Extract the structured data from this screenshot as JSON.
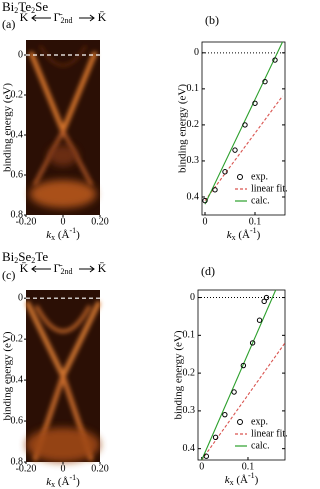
{
  "figures": [
    {
      "compound": [
        "Bi",
        "2",
        "Te",
        "2",
        "Se"
      ],
      "header": {
        "left": "K̄",
        "center": "Γ̄",
        "center_sub": "2nd",
        "right": "K̄"
      },
      "image": {
        "label": "(a)",
        "xlim": [
          -0.2,
          0.2
        ],
        "ylim": [
          -0.075,
          0.8
        ],
        "xticks": [
          {
            "value": -0.2,
            "label": "-0.20"
          },
          0,
          {
            "value": 0.2,
            "label": "0.20"
          }
        ],
        "yticks": [
          0,
          0.2,
          0.4,
          0.6,
          0.8
        ],
        "y_label": "binding energy (eV)",
        "x_label": [
          "k",
          "x",
          " (Å",
          "-1",
          ")"
        ]
      },
      "plot": {
        "label": "(b)",
        "type": "line",
        "xlim": [
          -0.006,
          0.16
        ],
        "ylim": [
          -0.03,
          0.45
        ],
        "xticks": [
          0,
          0.1
        ],
        "yticks": [
          0,
          0.1,
          0.2,
          0.3,
          0.4
        ],
        "y_label": "binding energy (eV)",
        "x_label": [
          "k",
          "x",
          " (Å",
          "-1",
          ")"
        ],
        "series": [
          {
            "name": "exp.",
            "color": "#000000",
            "style": "markers",
            "x": [
              0,
              0.02,
              0.04,
              0.06,
              0.08,
              0.1,
              0.12,
              0.14
            ],
            "values": [
              0.41,
              0.38,
              0.33,
              0.27,
              0.2,
              0.14,
              0.08,
              0.02
            ]
          },
          {
            "name": "linear fit.",
            "color": "#d9534f",
            "style": "dashed",
            "x": [
              0,
              0.155
            ],
            "values": [
              0.41,
              0.12
            ]
          },
          {
            "name": "calc.",
            "color": "#2ca02c",
            "style": "solid",
            "x": [
              0,
              0.155
            ],
            "values": [
              0.42,
              -0.03
            ]
          }
        ]
      }
    },
    {
      "compound": [
        "Bi",
        "2",
        "Se",
        "2",
        "Te"
      ],
      "header": {
        "left": "K̄",
        "center": "Γ̄",
        "center_sub": "2nd",
        "right": "K̄"
      },
      "image": {
        "label": "(c)",
        "xlim": [
          -0.2,
          0.2
        ],
        "ylim": [
          -0.04,
          0.8
        ],
        "xticks": [
          {
            "value": -0.2,
            "label": "-0.20"
          },
          0,
          {
            "value": 0.2,
            "label": "0.20"
          }
        ],
        "yticks": [
          0,
          0.2,
          0.4,
          0.6,
          0.8
        ],
        "y_label": "binding energy (eV)",
        "x_label": [
          "k",
          "x",
          " (Å",
          "-1",
          ")"
        ]
      },
      "plot": {
        "label": "(d)",
        "type": "line",
        "xlim": [
          -0.008,
          0.18
        ],
        "ylim": [
          -0.02,
          0.43
        ],
        "xticks": [
          0,
          0.1
        ],
        "yticks": [
          0,
          0.1,
          0.2,
          0.3,
          0.4
        ],
        "y_label": "binding energy (eV)",
        "x_label": [
          "k",
          "x",
          " (Å",
          "-1",
          ")"
        ],
        "series": [
          {
            "name": "exp.",
            "color": "#000000",
            "style": "markers",
            "x": [
              0.01,
              0.03,
              0.05,
              0.07,
              0.09,
              0.11,
              0.125,
              0.135,
              0.14
            ],
            "values": [
              0.42,
              0.37,
              0.31,
              0.25,
              0.18,
              0.12,
              0.06,
              0.01,
              0
            ]
          },
          {
            "name": "linear fit.",
            "color": "#d9534f",
            "style": "dashed",
            "x": [
              0,
              0.18
            ],
            "values": [
              0.43,
              0.12
            ]
          },
          {
            "name": "calc.",
            "color": "#2ca02c",
            "style": "solid",
            "x": [
              0,
              0.16
            ],
            "values": [
              0.43,
              -0.02
            ]
          }
        ]
      }
    }
  ]
}
